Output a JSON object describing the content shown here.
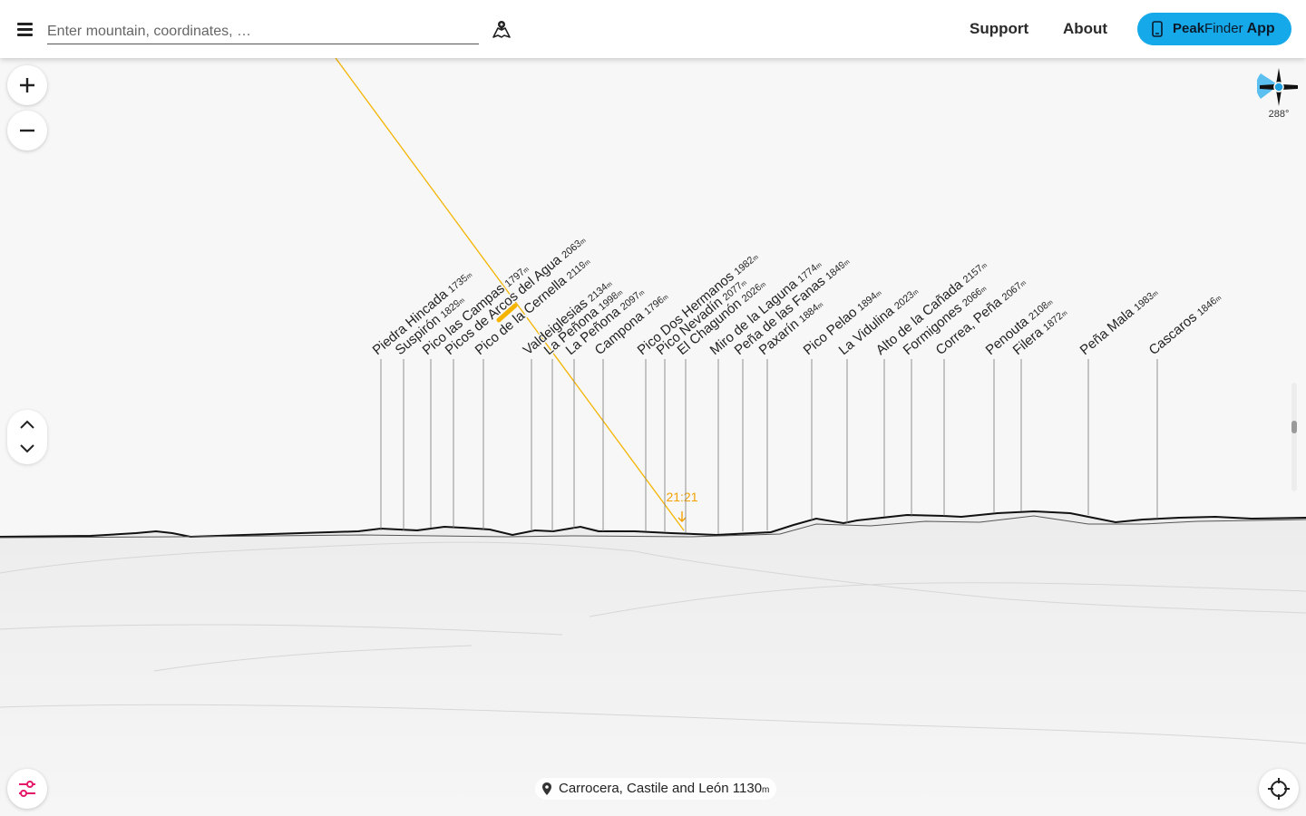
{
  "search": {
    "placeholder": "Enter mountain, coordinates, …"
  },
  "nav": {
    "support": "Support",
    "about": "About"
  },
  "app_button": {
    "brand_bold": "Peak",
    "brand_rest": "Finder",
    "app": "App",
    "color": "#16a9ea"
  },
  "icons": {
    "menu": "hamburger-menu-icon",
    "map": "map-pin-icon",
    "zoom_in": "plus-icon",
    "zoom_out": "minus-icon",
    "tilt_up": "chevron-up-icon",
    "tilt_down": "chevron-down-icon",
    "compass": "compass-icon",
    "settings": "sliders-icon",
    "locate": "crosshair-icon",
    "location_pin": "location-pin-icon",
    "phone": "phone-icon"
  },
  "compass": {
    "heading": "288°"
  },
  "sun": {
    "time": "21:21",
    "color": "#f4b400"
  },
  "location": {
    "name": "Carrocera, Castile and León",
    "elevation": "1130",
    "unit": "m"
  },
  "peaks": [
    {
      "name": "Piedra Hincada",
      "elevation": "1735",
      "unit": "m"
    },
    {
      "name": "Suspirón",
      "elevation": "1829",
      "unit": "m"
    },
    {
      "name": "Pico las Campas",
      "elevation": "1797",
      "unit": "m"
    },
    {
      "name": "Picos de Arcos del Agua",
      "elevation": "2063",
      "unit": "m"
    },
    {
      "name": "Pico de la Cernella",
      "elevation": "2119",
      "unit": "m"
    },
    {
      "name": "Valdeiglesias",
      "elevation": "2134",
      "unit": "m"
    },
    {
      "name": "La Peñona",
      "elevation": "1998",
      "unit": "m"
    },
    {
      "name": "La Peñona",
      "elevation": "2097",
      "unit": "m"
    },
    {
      "name": "Campona",
      "elevation": "1796",
      "unit": "m"
    },
    {
      "name": "Pico Dos Hermanos",
      "elevation": "1982",
      "unit": "m"
    },
    {
      "name": "Pico Nevadín",
      "elevation": "2077",
      "unit": "m"
    },
    {
      "name": "El Chagunón",
      "elevation": "2026",
      "unit": "m"
    },
    {
      "name": "Miro de la Laguna",
      "elevation": "1774",
      "unit": "m"
    },
    {
      "name": "Peña de las Fanas",
      "elevation": "1849",
      "unit": "m"
    },
    {
      "name": "Paxarín",
      "elevation": "1884",
      "unit": "m"
    },
    {
      "name": "Pico Pelao",
      "elevation": "1894",
      "unit": "m"
    },
    {
      "name": "La Vidulina",
      "elevation": "2023",
      "unit": "m"
    },
    {
      "name": "Alto de la Cañada",
      "elevation": "2157",
      "unit": "m"
    },
    {
      "name": "Formigones",
      "elevation": "2066",
      "unit": "m"
    },
    {
      "name": "Correa, Peña",
      "elevation": "2067",
      "unit": "m"
    },
    {
      "name": "Penouta",
      "elevation": "2108",
      "unit": "m"
    },
    {
      "name": "Filera",
      "elevation": "1872",
      "unit": "m"
    },
    {
      "name": "Peña Mala",
      "elevation": "1983",
      "unit": "m"
    },
    {
      "name": "Cascaros",
      "elevation": "1846",
      "unit": "m"
    }
  ]
}
